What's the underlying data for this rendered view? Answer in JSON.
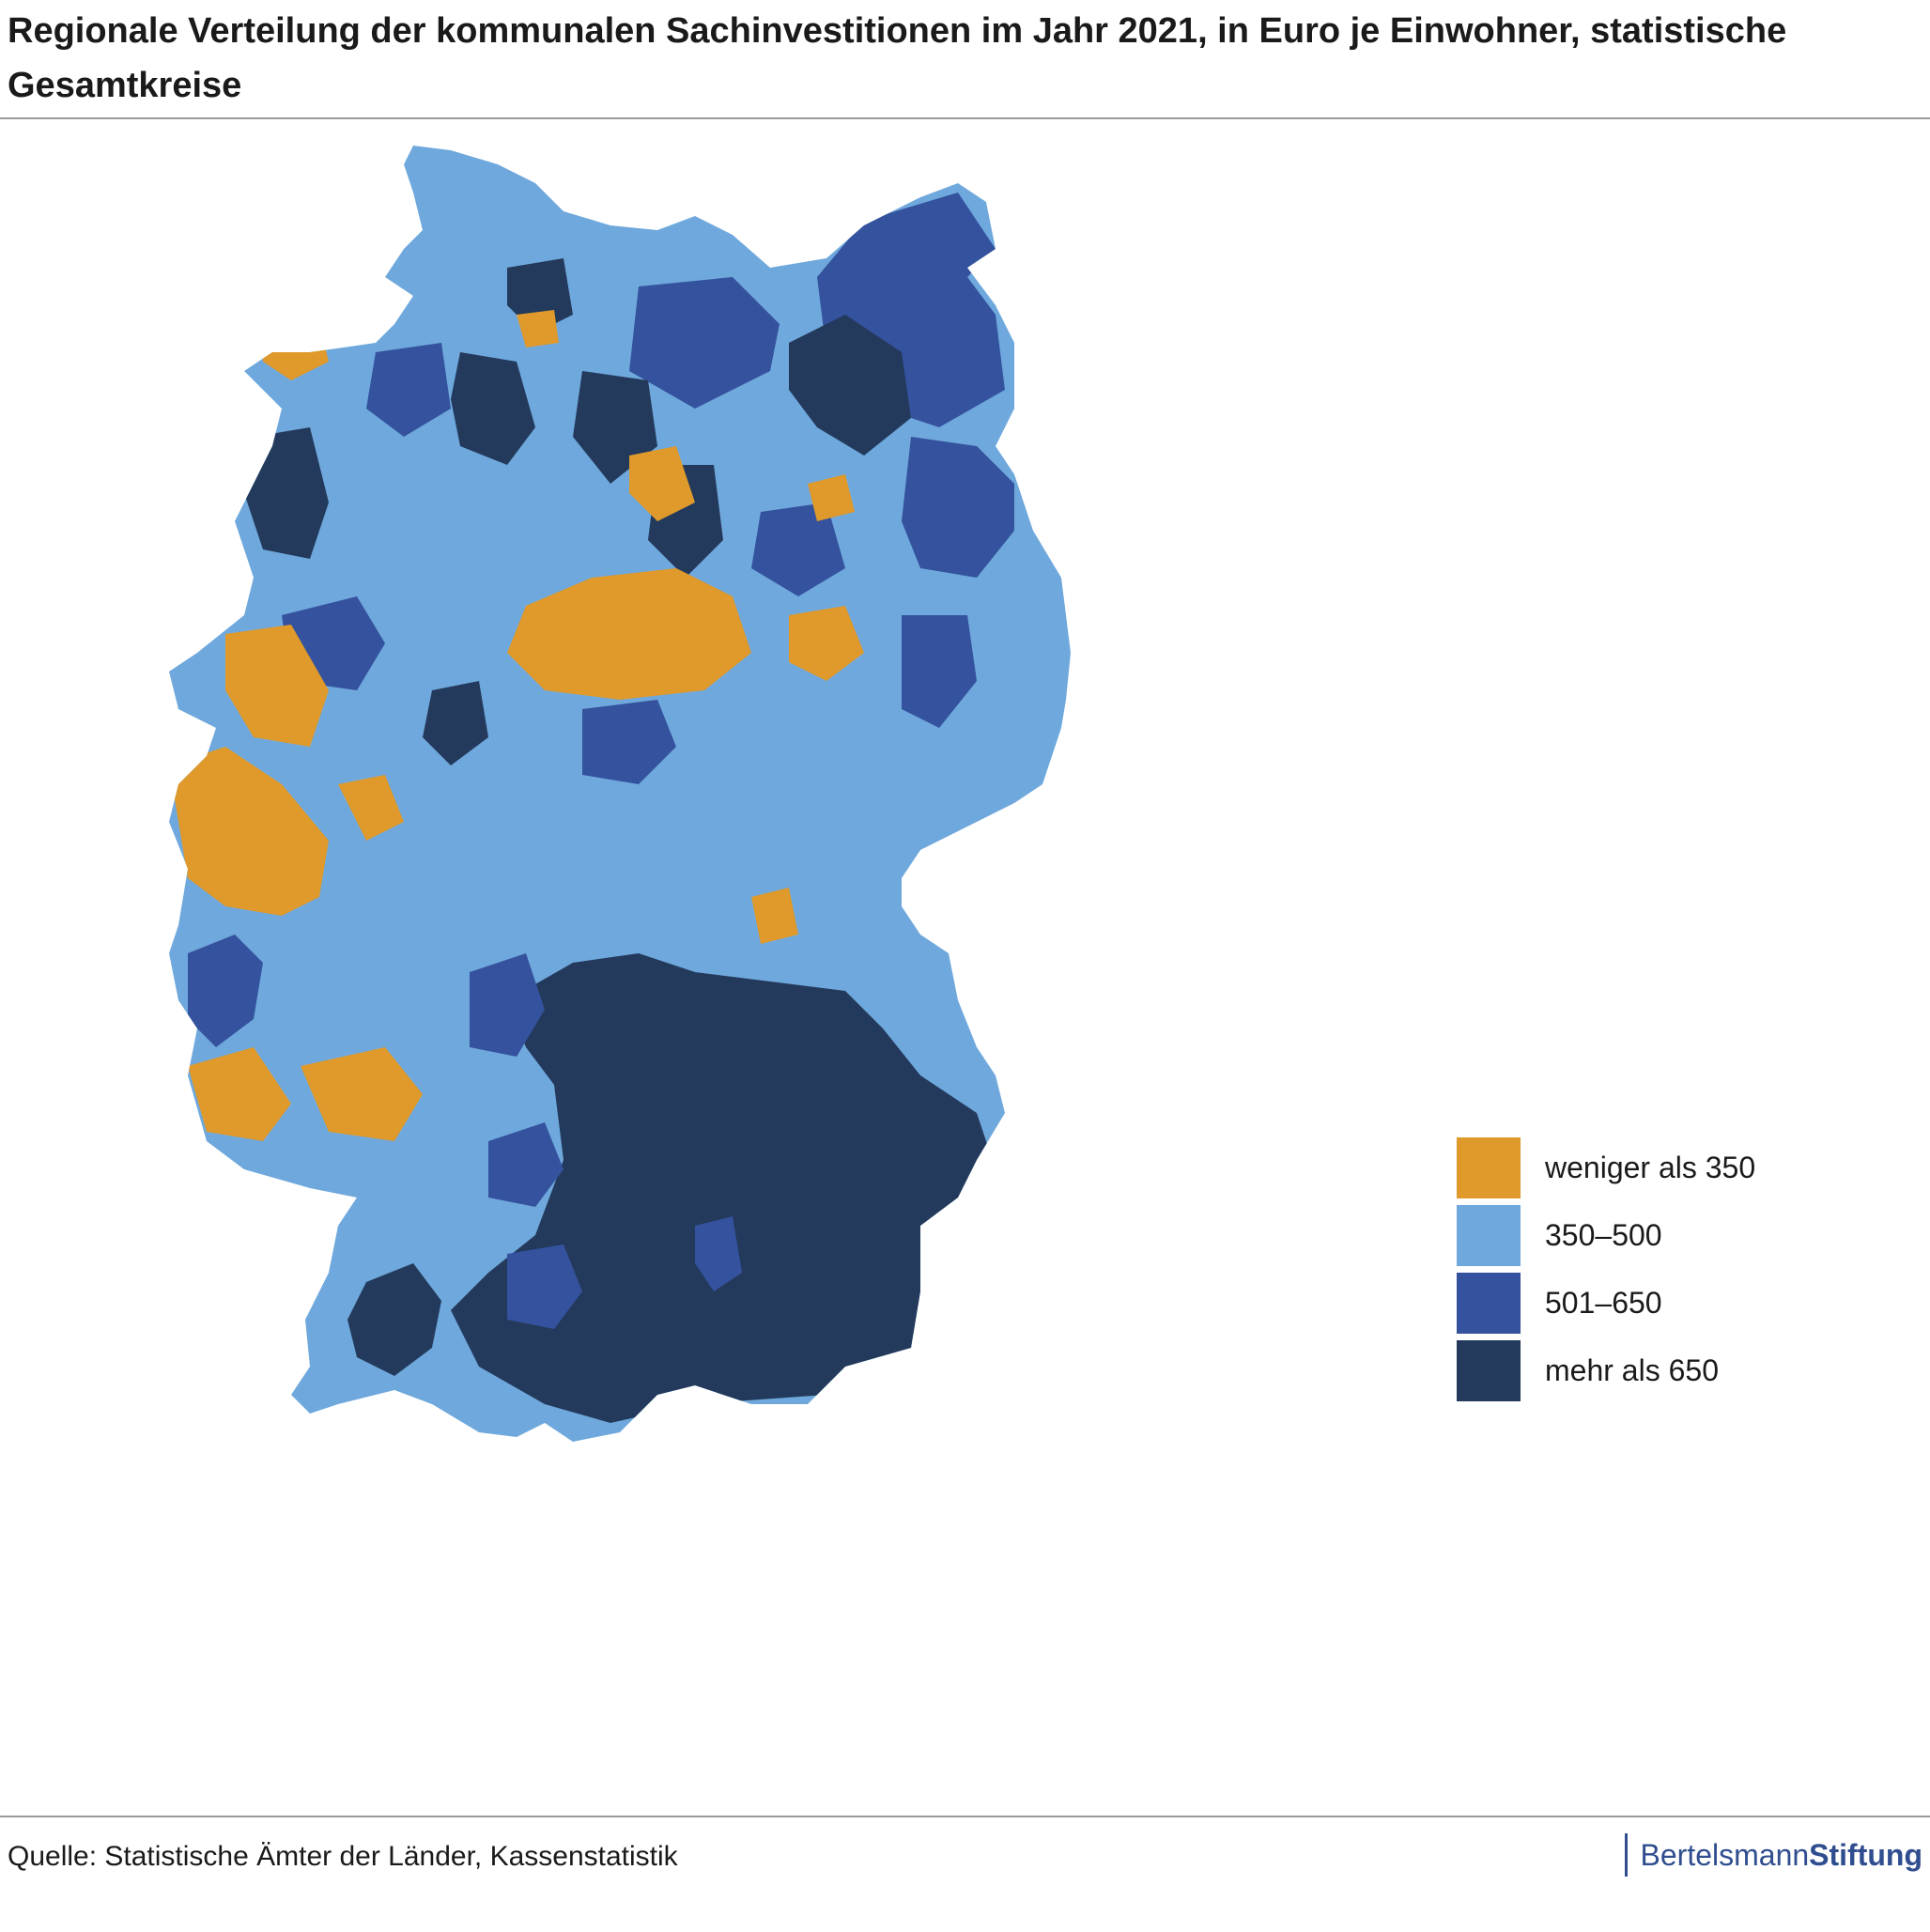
{
  "title": "Regionale Verteilung der kommunalen Sachinvestitionen im Jahr 2021, in Euro je Einwohner, statistische Gesamtkreise",
  "legend": {
    "items": [
      {
        "label": "weniger als 350",
        "color": "#DF9A2B"
      },
      {
        "label": "350–500",
        "color": "#6FA8DC"
      },
      {
        "label": "501–650",
        "color": "#34529D"
      },
      {
        "label": "mehr als 650",
        "color": "#233A5C"
      }
    ]
  },
  "source": "Quelle: Statistische Ämter der Länder, Kassenstatistik",
  "brand": {
    "light": "Bertelsmann",
    "bold": "Stiftung"
  }
}
